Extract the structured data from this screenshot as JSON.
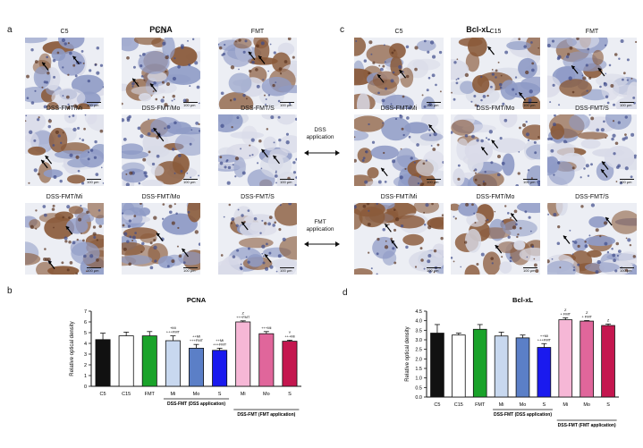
{
  "left_title": "PCNA",
  "right_title": "Bcl-xL",
  "panel_letters": {
    "a": "a",
    "b": "b",
    "c": "c",
    "d": "d"
  },
  "image_grid_left": {
    "row1": [
      "C5",
      "C15",
      "FMT"
    ],
    "row2": [
      "DSS-FMT/Mi",
      "DSS-FMT/Mo",
      "DSS-FMT/S"
    ],
    "row3": [
      "DSS-FMT/Mi",
      "DSS-FMT/Mo",
      "DSS-FMT/S"
    ]
  },
  "image_grid_right": {
    "row1": [
      "C5",
      "C15",
      "FMT"
    ],
    "row2": [
      "DSS-FMT/Mi",
      "DSS-FMT/Mo",
      "DSS-FMT/S"
    ],
    "row3": [
      "DSS-FMT/Mi",
      "DSS-FMT/Mo",
      "DSS-FMT/S"
    ]
  },
  "scale_label": "100 μm",
  "middle_labels": {
    "dss": [
      "DSS",
      "application"
    ],
    "fmt": [
      "FMT",
      "application"
    ]
  },
  "colors": {
    "C5": "#111111",
    "C15": "#ffffff",
    "FMT": "#1aa32a",
    "Mi1": "#c8d8ef",
    "Mo1": "#5b7fc7",
    "S1": "#1a1aee",
    "Mi2": "#f6b7d6",
    "Mo2": "#e0669b",
    "S2": "#c4174f",
    "tissue_stain": "#8a5a3a",
    "tissue_bg": "#d9dbe8"
  },
  "chart_data": [
    {
      "type": "bar",
      "title": "PCNA",
      "ylabel": "Relative optical density",
      "ylim": [
        0,
        7
      ],
      "yticks": [
        0,
        1,
        2,
        3,
        4,
        5,
        6,
        7
      ],
      "categories": [
        "C5",
        "C15",
        "FMT",
        "Mi",
        "Mo",
        "S",
        "Mi",
        "Mo",
        "S"
      ],
      "values": [
        4.35,
        4.7,
        4.7,
        4.25,
        3.55,
        3.35,
        6.0,
        4.9,
        4.2
      ],
      "errors": [
        0.6,
        0.35,
        0.4,
        0.45,
        0.35,
        0.2,
        0.1,
        0.2,
        0.1
      ],
      "annotations": [
        [],
        [],
        [],
        [
          "+Mi",
          "+++FMT"
        ],
        [
          "++Mi",
          "+++FMT"
        ],
        [
          "++Mi",
          "+++FMT"
        ],
        [
          "Z",
          "+++FMT"
        ],
        [
          "+++Mi"
        ],
        [
          "Y",
          "+++Mi"
        ]
      ],
      "group_labels": [
        "DSS-FMT (DSS application)",
        "DSS-FMT (FMT application)"
      ]
    },
    {
      "type": "bar",
      "title": "Bcl-xL",
      "ylabel": "Relative optical density",
      "ylim": [
        0,
        4.5
      ],
      "yticks": [
        0,
        0.5,
        1.0,
        1.5,
        2.0,
        2.5,
        3.0,
        3.5,
        4.0,
        4.5
      ],
      "categories": [
        "C5",
        "C15",
        "FMT",
        "Mi",
        "Mo",
        "S",
        "Mi",
        "Mo",
        "S"
      ],
      "values": [
        3.35,
        3.25,
        3.55,
        3.2,
        3.1,
        2.6,
        4.05,
        3.98,
        3.75
      ],
      "errors": [
        0.45,
        0.1,
        0.25,
        0.2,
        0.15,
        0.2,
        0.1,
        0.03,
        0.08
      ],
      "annotations": [
        [],
        [],
        [],
        [],
        [],
        [
          "++Mi",
          "+++FMT"
        ],
        [
          "Z",
          "+ FMT"
        ],
        [
          "Z",
          "+ FMT"
        ],
        [
          "Z"
        ]
      ],
      "group_labels": [
        "DSS-FMT (DSS application)",
        "DSS-FMT (FMT application)"
      ]
    }
  ]
}
